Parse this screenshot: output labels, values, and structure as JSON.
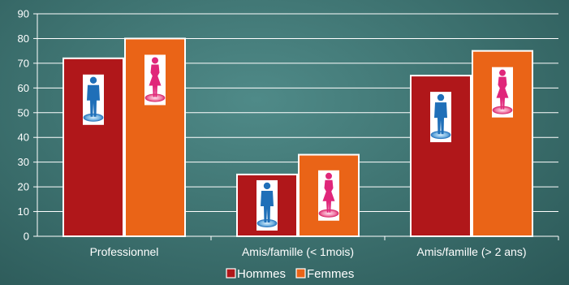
{
  "chart_data": {
    "type": "bar",
    "categories": [
      "Professionnel",
      "Amis/famille (< 1mois)",
      "Amis/famille (> 2 ans)"
    ],
    "series": [
      {
        "name": "Hommes",
        "values": [
          72,
          25,
          65
        ],
        "color": "#b0171a"
      },
      {
        "name": "Femmes",
        "values": [
          80,
          33,
          75
        ],
        "color": "#ea6417"
      }
    ],
    "y_ticks": [
      0,
      10,
      20,
      30,
      40,
      50,
      60,
      70,
      80,
      90
    ],
    "ylim": [
      0,
      90
    ],
    "grid": true,
    "legend_position": "bottom-center",
    "icons": {
      "Hommes": "man-figure-icon",
      "Femmes": "woman-figure-icon"
    }
  }
}
